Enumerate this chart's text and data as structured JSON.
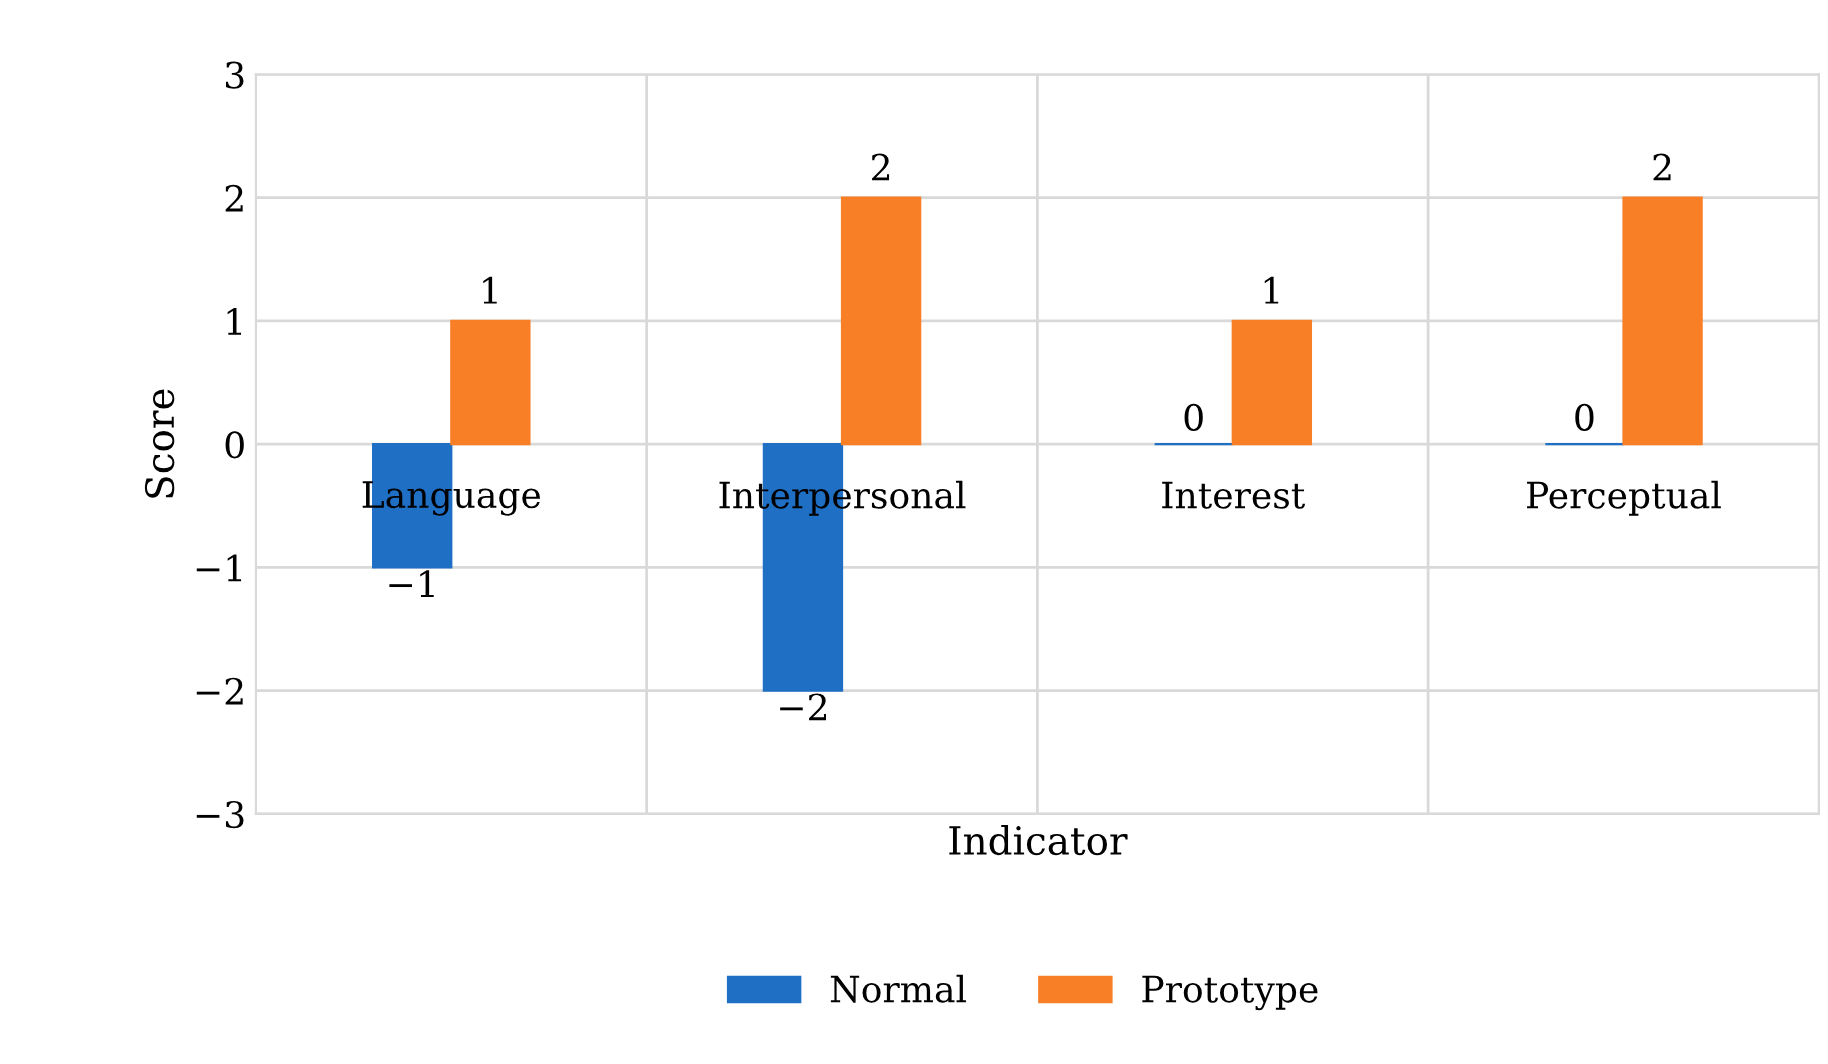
{
  "chart_data": {
    "type": "bar",
    "xlabel": "Indicator",
    "ylabel": "Score",
    "categories": [
      "Language",
      "Interpersonal",
      "Interest",
      "Perceptual"
    ],
    "series": [
      {
        "name": "Normal",
        "color": "#1f6fc5",
        "values": [
          -1,
          -2,
          0,
          0
        ]
      },
      {
        "name": "Prototype",
        "color": "#f97f27",
        "values": [
          1,
          2,
          1,
          2
        ]
      }
    ],
    "ylim": [
      -3,
      3
    ],
    "yticks": [
      -3,
      -2,
      -1,
      0,
      1,
      2,
      3
    ],
    "grid": true,
    "legend": "bottom",
    "data_labels": true
  }
}
